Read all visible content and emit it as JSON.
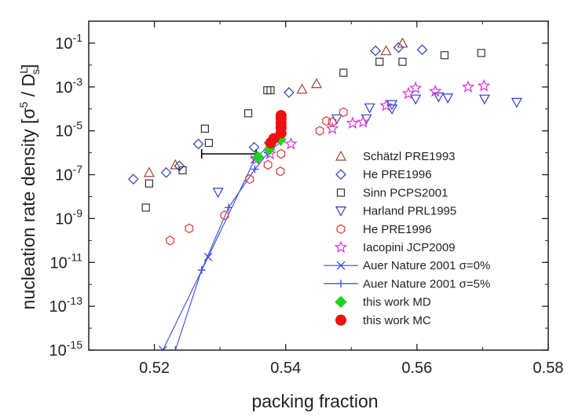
{
  "chart_data": {
    "type": "scatter",
    "xlabel": "packing fraction",
    "ylabel": "nucleation rate density [σ",
    "ylabel_sup": "5",
    "ylabel_mid": " / D",
    "ylabel_sub": "s",
    "ylabel_subsup": "L",
    "ylabel_end": "]",
    "xlim": [
      0.51,
      0.58
    ],
    "ylim_log10": [
      -15,
      0
    ],
    "x_ticks": [
      {
        "value": 0.52,
        "label": "0.52"
      },
      {
        "value": 0.54,
        "label": "0.54"
      },
      {
        "value": 0.56,
        "label": "0.56"
      },
      {
        "value": 0.58,
        "label": "0.58"
      }
    ],
    "y_ticks": [
      {
        "exp": -1,
        "base": "10",
        "sup": "-1"
      },
      {
        "exp": -3,
        "base": "10",
        "sup": "-3"
      },
      {
        "exp": -5,
        "base": "10",
        "sup": "-5"
      },
      {
        "exp": -7,
        "base": "10",
        "sup": "-7"
      },
      {
        "exp": -9,
        "base": "10",
        "sup": "-9"
      },
      {
        "exp": -11,
        "base": "10",
        "sup": "-11"
      },
      {
        "exp": -13,
        "base": "10",
        "sup": "-13"
      },
      {
        "exp": -15,
        "base": "10",
        "sup": "-15"
      }
    ],
    "series": [
      {
        "name": "Schätzl PRE1993",
        "marker": "triangle-up",
        "color": "#a0433a",
        "points": [
          [
            0.5192,
            -6.9
          ],
          [
            0.5232,
            -6.55
          ],
          [
            0.5425,
            -3.1
          ],
          [
            0.5447,
            -2.85
          ],
          [
            0.5553,
            -1.35
          ],
          [
            0.5578,
            -1.0
          ]
        ]
      },
      {
        "name": "He PRE1996",
        "marker": "diamond",
        "color": "#2a3cb8",
        "points": [
          [
            0.5168,
            -7.2
          ],
          [
            0.5218,
            -6.9
          ],
          [
            0.5238,
            -6.6
          ],
          [
            0.5267,
            -5.6
          ],
          [
            0.5405,
            -3.25
          ],
          [
            0.5352,
            -5.75
          ],
          [
            0.5572,
            -1.2
          ],
          [
            0.5608,
            -1.3
          ],
          [
            0.5537,
            -1.35
          ]
        ]
      },
      {
        "name": "Sinn PCPS2001",
        "marker": "square",
        "color": "#333333",
        "points": [
          [
            0.5187,
            -8.5
          ],
          [
            0.5192,
            -7.4
          ],
          [
            0.5243,
            -6.8
          ],
          [
            0.5277,
            -4.9
          ],
          [
            0.5283,
            -5.55
          ],
          [
            0.5343,
            -4.2
          ],
          [
            0.5372,
            -3.15
          ],
          [
            0.5377,
            -3.15
          ],
          [
            0.5488,
            -2.35
          ],
          [
            0.5543,
            -1.85
          ],
          [
            0.5578,
            -1.85
          ],
          [
            0.5642,
            -1.55
          ],
          [
            0.5698,
            -1.45
          ]
        ]
      },
      {
        "name": "Harland PRL1995",
        "marker": "triangle-down",
        "color": "#2d3fd0",
        "points": [
          [
            0.5297,
            -7.8
          ],
          [
            0.5478,
            -4.45
          ],
          [
            0.5523,
            -4.45
          ],
          [
            0.5562,
            -4.0
          ],
          [
            0.5598,
            -3.55
          ],
          [
            0.5633,
            -3.45
          ],
          [
            0.5647,
            -3.5
          ],
          [
            0.5703,
            -3.55
          ],
          [
            0.5752,
            -3.7
          ],
          [
            0.5562,
            -3.8
          ],
          [
            0.5528,
            -3.95
          ]
        ]
      },
      {
        "name": "He PRE1996",
        "marker": "hexagon",
        "color": "#e03838",
        "points": [
          [
            0.5224,
            -10.0
          ],
          [
            0.5253,
            -9.45
          ],
          [
            0.5307,
            -8.85
          ],
          [
            0.5345,
            -7.2
          ],
          [
            0.5373,
            -6.55
          ],
          [
            0.5392,
            -6.85
          ],
          [
            0.5393,
            -6.05
          ],
          [
            0.5452,
            -5.0
          ],
          [
            0.5462,
            -4.55
          ],
          [
            0.5471,
            -4.6
          ],
          [
            0.5488,
            -4.15
          ]
        ]
      },
      {
        "name": "Iacopini JCP2009",
        "marker": "star",
        "color": "#d633d6",
        "points": [
          [
            0.5355,
            -6.3
          ],
          [
            0.5376,
            -6.05
          ],
          [
            0.5408,
            -5.6
          ],
          [
            0.5471,
            -4.9
          ],
          [
            0.5502,
            -4.65
          ],
          [
            0.5518,
            -4.6
          ],
          [
            0.5553,
            -3.85
          ],
          [
            0.5587,
            -3.3
          ],
          [
            0.5598,
            -3.05
          ],
          [
            0.5628,
            -3.2
          ],
          [
            0.5678,
            -3.0
          ],
          [
            0.5702,
            -2.95
          ]
        ]
      },
      {
        "name": "Auer Nature 2001 σ=0%",
        "marker": "x",
        "color": "#3b4ae0",
        "line": true,
        "points": [
          [
            0.5213,
            -15.0
          ],
          [
            0.5282,
            -10.75
          ],
          [
            0.5353,
            -6.3
          ],
          [
            0.5373,
            -5.7
          ],
          [
            0.5393,
            -5.25
          ]
        ]
      },
      {
        "name": "Auer Nature 2001 σ=5%",
        "marker": "plus",
        "color": "#3b4ae0",
        "line": true,
        "points": [
          [
            0.5232,
            -15.0
          ],
          [
            0.5272,
            -11.35
          ],
          [
            0.5313,
            -8.5
          ],
          [
            0.5353,
            -6.75
          ],
          [
            0.5373,
            -6.0
          ],
          [
            0.5393,
            -5.5
          ]
        ]
      },
      {
        "name": "this work MD",
        "marker": "filled-diamond",
        "color": "#1fd41f",
        "points": [
          [
            0.5358,
            -6.2
          ],
          [
            0.5375,
            -5.85
          ],
          [
            0.5392,
            -5.4
          ]
        ]
      },
      {
        "name": "this work MC",
        "marker": "filled-circle",
        "color": "#ee1111",
        "points": [
          [
            0.5377,
            -5.55
          ],
          [
            0.5382,
            -5.35
          ],
          [
            0.5393,
            -5.1
          ],
          [
            0.5393,
            -4.85
          ],
          [
            0.5393,
            -4.65
          ],
          [
            0.5393,
            -4.45
          ],
          [
            0.5393,
            -4.3
          ]
        ]
      }
    ],
    "errorbar": {
      "y_log10": -6.05,
      "x_from": 0.5272,
      "x_to": 0.5355
    },
    "legend_position": "center-right"
  }
}
